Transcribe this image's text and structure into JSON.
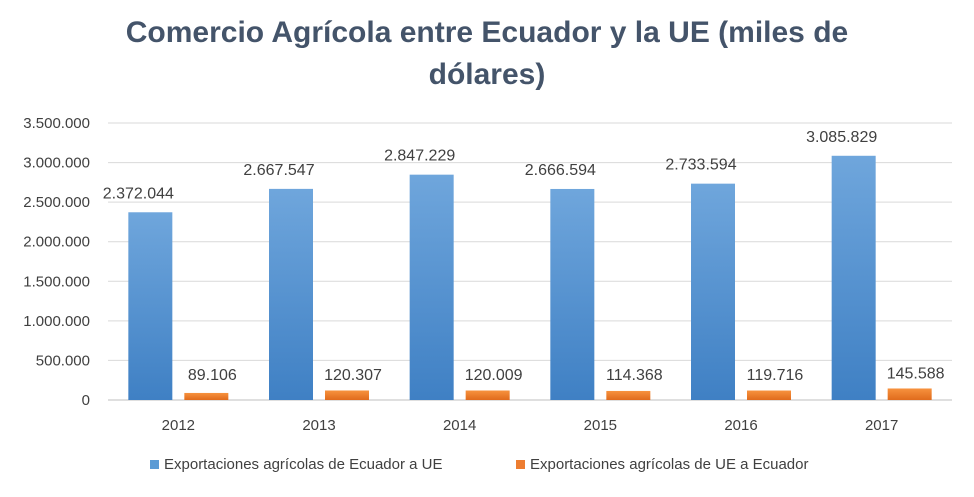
{
  "chart_data": {
    "type": "bar",
    "title_line1": "Comercio Agrícola entre Ecuador y la UE (miles de",
    "title_line2": "dólares)",
    "categories": [
      "2012",
      "2013",
      "2014",
      "2015",
      "2016",
      "2017"
    ],
    "series": [
      {
        "name": "Exportaciones agrícolas de Ecuador a UE",
        "color": "#5b9bd5",
        "values": [
          2372044,
          2667547,
          2847229,
          2666594,
          2733594,
          3085829
        ],
        "labels": [
          "2.372.044",
          "2.667.547",
          "2.847.229",
          "2.666.594",
          "2.733.594",
          "3.085.829"
        ]
      },
      {
        "name": "Exportaciones agrícolas de UE a Ecuador",
        "color": "#ed7d31",
        "values": [
          89106,
          120307,
          120009,
          114368,
          119716,
          145588
        ],
        "labels": [
          "89.106",
          "120.307",
          "120.009",
          "114.368",
          "119.716",
          "145.588"
        ]
      }
    ],
    "yticks": [
      0,
      500000,
      1000000,
      1500000,
      2000000,
      2500000,
      3000000,
      3500000
    ],
    "ytick_labels": [
      "0",
      "500.000",
      "1.000.000",
      "1.500.000",
      "2.000.000",
      "2.500.000",
      "3.000.000",
      "3.500.000"
    ],
    "ylim": [
      0,
      3500000
    ],
    "grid": true,
    "legend_position": "bottom"
  }
}
